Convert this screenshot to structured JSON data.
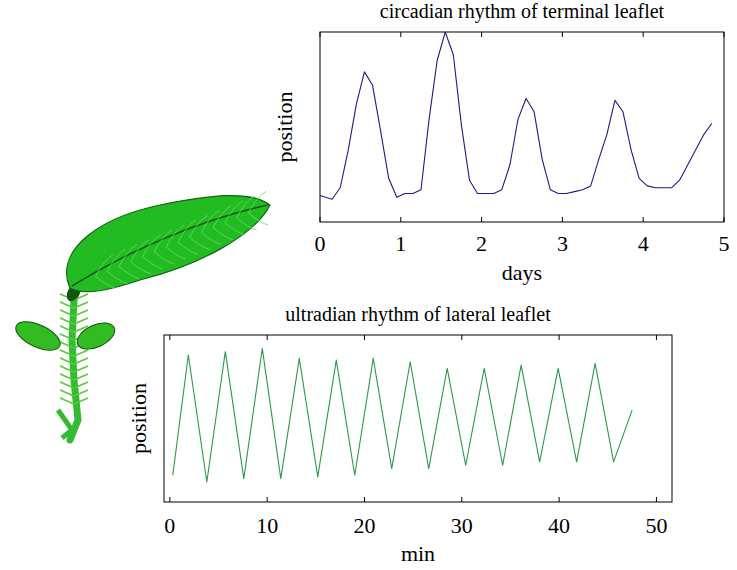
{
  "chart_data": [
    {
      "type": "line",
      "title": "circadian rhythm of terminal leaflet",
      "x_label": "days",
      "y_label": "position",
      "color": "#1c1c86",
      "tick_labels": "x",
      "xlim": [
        0,
        5
      ],
      "xticks": [
        0,
        1,
        2,
        3,
        4,
        5
      ],
      "ylim": [
        0,
        1
      ],
      "x": [
        0,
        0.15,
        0.25,
        0.35,
        0.45,
        0.55,
        0.65,
        0.75,
        0.85,
        0.95,
        1.05,
        1.15,
        1.25,
        1.35,
        1.45,
        1.55,
        1.65,
        1.75,
        1.85,
        1.95,
        2.05,
        2.15,
        2.25,
        2.35,
        2.45,
        2.55,
        2.65,
        2.75,
        2.85,
        2.95,
        3.05,
        3.15,
        3.25,
        3.35,
        3.45,
        3.55,
        3.65,
        3.75,
        3.85,
        3.95,
        4.05,
        4.15,
        4.25,
        4.35,
        4.45,
        4.55,
        4.65,
        4.75,
        4.85
      ],
      "values": [
        0.14,
        0.12,
        0.18,
        0.38,
        0.62,
        0.79,
        0.72,
        0.48,
        0.23,
        0.13,
        0.15,
        0.15,
        0.17,
        0.54,
        0.85,
        1.0,
        0.88,
        0.51,
        0.22,
        0.15,
        0.15,
        0.15,
        0.17,
        0.3,
        0.54,
        0.65,
        0.58,
        0.33,
        0.17,
        0.15,
        0.15,
        0.16,
        0.17,
        0.19,
        0.33,
        0.46,
        0.64,
        0.58,
        0.38,
        0.23,
        0.19,
        0.18,
        0.18,
        0.18,
        0.22,
        0.3,
        0.38,
        0.46,
        0.52
      ]
    },
    {
      "type": "line",
      "title": "ultradian rhythm of lateral leaflet",
      "x_label": "min",
      "y_label": "position",
      "color": "#2a9a4a",
      "tick_labels": "x",
      "xlim": [
        -0.6,
        51.6
      ],
      "xticks": [
        0,
        10,
        20,
        30,
        40,
        50
      ],
      "ylim": [
        0,
        1
      ],
      "x": [
        0.3,
        1.9,
        3.8,
        5.7,
        7.6,
        9.5,
        11.4,
        13.3,
        15.2,
        17.1,
        19,
        20.9,
        22.8,
        24.7,
        26.6,
        28.5,
        30.4,
        32.3,
        34.2,
        36.1,
        38,
        39.9,
        41.8,
        43.7,
        45.6,
        47.5
      ],
      "values": [
        0.16,
        0.88,
        0.12,
        0.9,
        0.14,
        0.92,
        0.14,
        0.86,
        0.15,
        0.85,
        0.16,
        0.86,
        0.2,
        0.84,
        0.2,
        0.8,
        0.22,
        0.8,
        0.22,
        0.82,
        0.24,
        0.8,
        0.24,
        0.83,
        0.24,
        0.55
      ]
    }
  ]
}
